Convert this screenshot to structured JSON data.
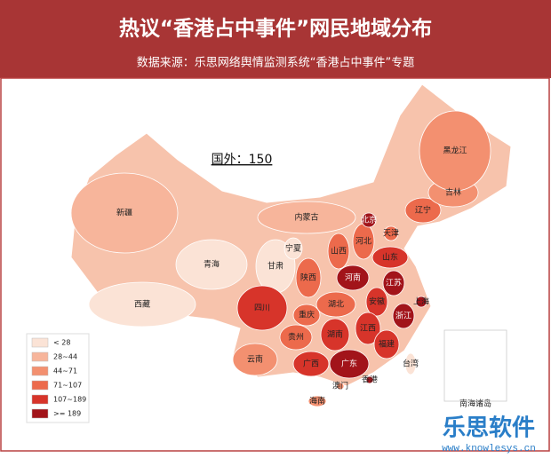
{
  "header": {
    "title": "热议“香港占中事件”网民地域分布",
    "subtitle": "数据来源：乐思网络舆情监测系统“香港占中事件”专题"
  },
  "annotation": "国外：150",
  "legend": [
    {
      "label": "< 28",
      "color": "#fbe3d6"
    },
    {
      "label": "28~44",
      "color": "#f7b59b"
    },
    {
      "label": "44~71",
      "color": "#f39070"
    },
    {
      "label": "71~107",
      "color": "#ec6a4c"
    },
    {
      "label": "107~189",
      "color": "#d7342a"
    },
    {
      "label": ">= 189",
      "color": "#a2141a"
    }
  ],
  "provinces": [
    {
      "name": "新疆",
      "color": "#f7b59b"
    },
    {
      "name": "西藏",
      "color": "#fbe3d6"
    },
    {
      "name": "青海",
      "color": "#fbe3d6"
    },
    {
      "name": "甘肃",
      "color": "#fbe3d6"
    },
    {
      "name": "内蒙古",
      "color": "#f7b59b"
    },
    {
      "name": "宁夏",
      "color": "#fbe3d6"
    },
    {
      "name": "陕西",
      "color": "#ec6a4c"
    },
    {
      "name": "四川",
      "color": "#d7342a"
    },
    {
      "name": "重庆",
      "color": "#ec6a4c"
    },
    {
      "name": "云南",
      "color": "#f39070"
    },
    {
      "name": "贵州",
      "color": "#ec6a4c"
    },
    {
      "name": "广西",
      "color": "#d7342a"
    },
    {
      "name": "广东",
      "color": "#a2141a"
    },
    {
      "name": "海南",
      "color": "#f39070"
    },
    {
      "name": "湖南",
      "color": "#d7342a"
    },
    {
      "name": "湖北",
      "color": "#ec6a4c"
    },
    {
      "name": "河南",
      "color": "#a2141a"
    },
    {
      "name": "山西",
      "color": "#ec6a4c"
    },
    {
      "name": "河北",
      "color": "#ec6a4c"
    },
    {
      "name": "北京",
      "color": "#a2141a"
    },
    {
      "name": "天津",
      "color": "#ec6a4c"
    },
    {
      "name": "山东",
      "color": "#d7342a"
    },
    {
      "name": "辽宁",
      "color": "#ec6a4c"
    },
    {
      "name": "吉林",
      "color": "#f39070"
    },
    {
      "name": "黑龙江",
      "color": "#f39070"
    },
    {
      "name": "江苏",
      "color": "#a2141a"
    },
    {
      "name": "安徽",
      "color": "#d7342a"
    },
    {
      "name": "上海",
      "color": "#a2141a"
    },
    {
      "name": "浙江",
      "color": "#a2141a"
    },
    {
      "name": "江西",
      "color": "#d7342a"
    },
    {
      "name": "福建",
      "color": "#d7342a"
    },
    {
      "name": "台湾",
      "color": "#fbe3d6"
    },
    {
      "name": "香港",
      "color": "#a2141a"
    },
    {
      "name": "澳门",
      "color": "#f39070"
    },
    {
      "name": "南海诸岛",
      "color": "#fbe3d6"
    }
  ],
  "watermark": {
    "brand": "乐思软件",
    "url": "www.knowlesys.cn"
  }
}
